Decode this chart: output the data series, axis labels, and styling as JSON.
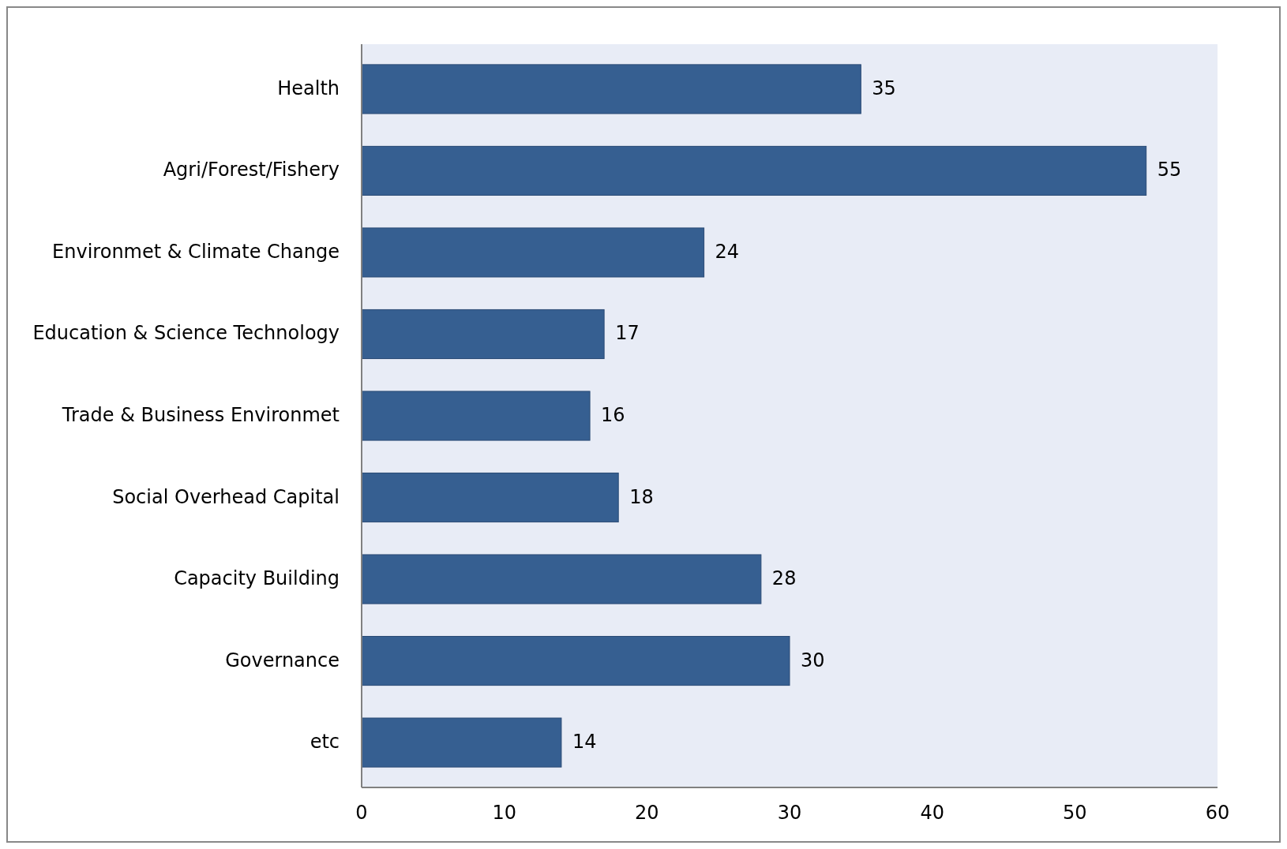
{
  "chart_data": {
    "type": "bar",
    "orientation": "horizontal",
    "categories": [
      "Health",
      "Agri/Forest/Fishery",
      "Environmet & Climate Change",
      "Education & Science Technology",
      "Trade & Business Environmet",
      "Social Overhead Capital",
      "Capacity Building",
      "Governance",
      "etc"
    ],
    "values": [
      35,
      55,
      24,
      17,
      16,
      18,
      28,
      30,
      14
    ],
    "color": "#365f91",
    "xlim": [
      0,
      60
    ],
    "xticks": [
      0,
      10,
      20,
      30,
      40,
      50,
      60
    ],
    "data_labels": true,
    "grid": false
  }
}
